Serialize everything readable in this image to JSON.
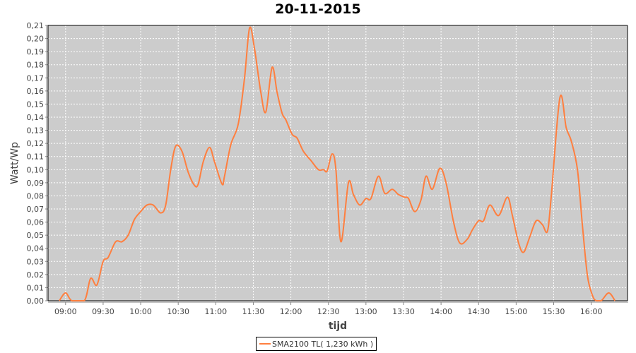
{
  "chart_data": {
    "type": "line",
    "title": "20-11-2015",
    "xlabel": "tijd",
    "ylabel": "Watt/Wp",
    "xlim": [
      "08:46",
      "16:29"
    ],
    "ylim": [
      0,
      0.21
    ],
    "x_ticks": [
      "09:00",
      "09:30",
      "10:00",
      "10:30",
      "11:00",
      "11:30",
      "12:00",
      "12:30",
      "13:00",
      "13:30",
      "14:00",
      "14:30",
      "15:00",
      "15:30",
      "16:00"
    ],
    "y_ticks": [
      "0,00",
      "0,01",
      "0,02",
      "0,03",
      "0,04",
      "0,05",
      "0,06",
      "0,07",
      "0,08",
      "0,09",
      "0,10",
      "0,11",
      "0,12",
      "0,13",
      "0,14",
      "0,15",
      "0,16",
      "0,17",
      "0,18",
      "0,19",
      "0,20",
      "0,21"
    ],
    "grid": true,
    "legend_placement": "bottom",
    "colors": {
      "series": "#ff7f3f",
      "plot_background": "#cccccc",
      "grid": "#ffffff"
    },
    "series": [
      {
        "name": "SMA2100 TL( 1,230 kWh )",
        "x": [
          "08:55",
          "09:00",
          "09:05",
          "09:15",
          "09:20",
          "09:25",
          "09:30",
          "09:34",
          "09:40",
          "09:45",
          "09:50",
          "09:55",
          "10:00",
          "10:05",
          "10:10",
          "10:16",
          "10:20",
          "10:24",
          "10:28",
          "10:33",
          "10:38",
          "10:43",
          "10:46",
          "10:50",
          "10:55",
          "10:59",
          "11:05",
          "11:07",
          "11:12",
          "11:18",
          "11:23",
          "11:27",
          "11:31",
          "11:36",
          "11:40",
          "11:45",
          "11:49",
          "11:53",
          "11:56",
          "12:01",
          "12:05",
          "12:10",
          "12:16",
          "12:22",
          "12:26",
          "12:29",
          "12:33",
          "12:36",
          "12:40",
          "12:46",
          "12:50",
          "12:55",
          "13:00",
          "13:04",
          "13:10",
          "13:15",
          "13:21",
          "13:26",
          "13:31",
          "13:34",
          "13:39",
          "13:44",
          "13:48",
          "13:53",
          "13:59",
          "14:04",
          "14:10",
          "14:15",
          "14:21",
          "14:25",
          "14:30",
          "14:34",
          "14:39",
          "14:46",
          "14:53",
          "14:57",
          "15:02",
          "15:06",
          "15:11",
          "15:16",
          "15:21",
          "15:25",
          "15:28",
          "15:35",
          "15:40",
          "15:44",
          "15:49",
          "15:53",
          "15:57",
          "16:01",
          "16:04",
          "16:08",
          "16:14",
          "16:19"
        ],
        "y": [
          0,
          0.006,
          0,
          0,
          0.017,
          0.012,
          0.03,
          0.033,
          0.045,
          0.045,
          0.05,
          0.062,
          0.068,
          0.073,
          0.073,
          0.067,
          0.073,
          0.1,
          0.118,
          0.114,
          0.098,
          0.088,
          0.089,
          0.106,
          0.117,
          0.106,
          0.089,
          0.095,
          0.119,
          0.135,
          0.17,
          0.208,
          0.192,
          0.159,
          0.144,
          0.178,
          0.159,
          0.143,
          0.138,
          0.127,
          0.124,
          0.114,
          0.107,
          0.1,
          0.1,
          0.099,
          0.112,
          0.1,
          0.045,
          0.09,
          0.081,
          0.073,
          0.078,
          0.078,
          0.095,
          0.082,
          0.085,
          0.081,
          0.079,
          0.078,
          0.068,
          0.077,
          0.095,
          0.085,
          0.101,
          0.09,
          0.06,
          0.044,
          0.047,
          0.054,
          0.061,
          0.061,
          0.073,
          0.065,
          0.079,
          0.065,
          0.044,
          0.037,
          0.049,
          0.061,
          0.058,
          0.053,
          0.079,
          0.155,
          0.132,
          0.122,
          0.1,
          0.057,
          0.019,
          0.004,
          0,
          0,
          0.006,
          0
        ]
      }
    ]
  }
}
